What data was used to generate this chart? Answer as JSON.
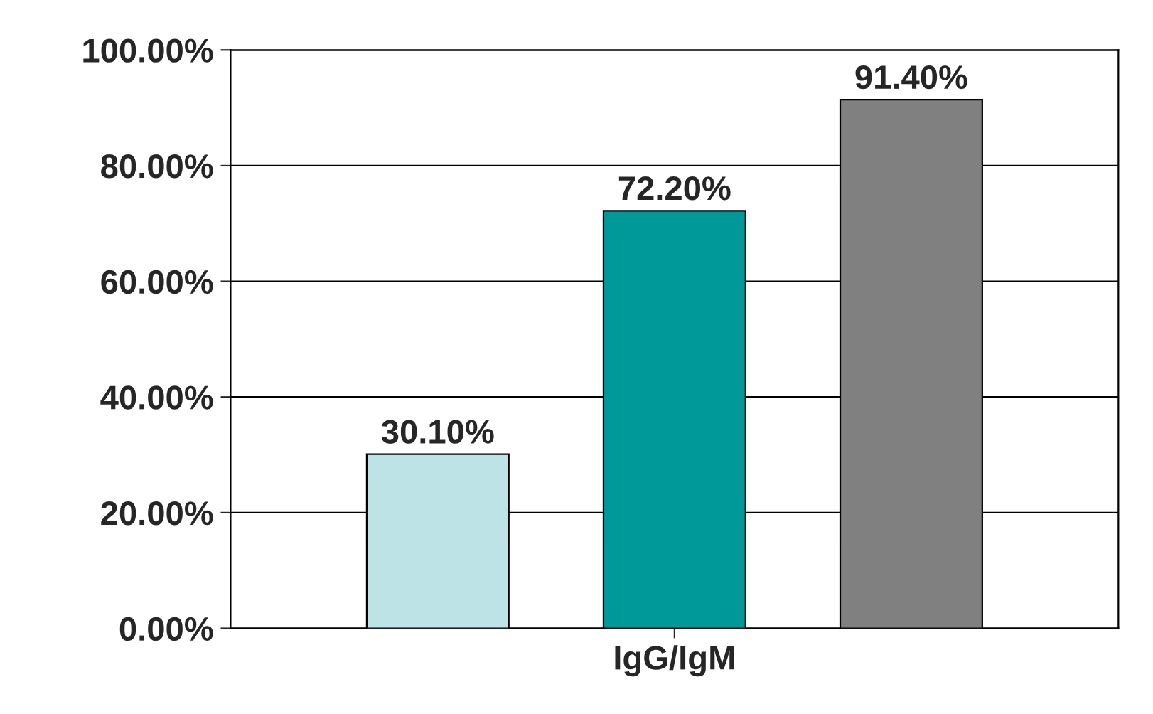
{
  "chart_data": {
    "type": "bar",
    "categories": [
      "IgG/IgM"
    ],
    "series": [
      {
        "color": "#bde3e6",
        "values": [
          30.1
        ],
        "value_labels": [
          "30.10%"
        ]
      },
      {
        "color": "#009999",
        "values": [
          72.2
        ],
        "value_labels": [
          "72.20%"
        ]
      },
      {
        "color": "#808080",
        "values": [
          91.4
        ],
        "value_labels": [
          "91.40%"
        ]
      }
    ],
    "ylim": [
      0,
      100
    ],
    "yticks": [
      {
        "value": 0,
        "label": "0.00%"
      },
      {
        "value": 20,
        "label": "20.00%"
      },
      {
        "value": 40,
        "label": "40.00%"
      },
      {
        "value": 60,
        "label": "60.00%"
      },
      {
        "value": 80,
        "label": "80.00%"
      },
      {
        "value": 100,
        "label": "100.00%"
      }
    ],
    "grid": "y"
  }
}
